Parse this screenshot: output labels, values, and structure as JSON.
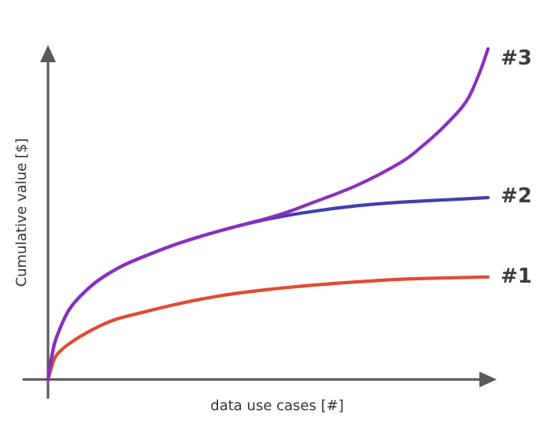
{
  "chart_data": {
    "type": "line",
    "title": "",
    "xlabel": "data use cases [#]",
    "ylabel": "Cumulative value [$]",
    "xlim": [
      0,
      100
    ],
    "ylim": [
      0,
      100
    ],
    "grid": false,
    "legend": "none",
    "axis_ticks": false,
    "series": [
      {
        "name": "#1",
        "color": "#e24a33",
        "x": [
          0,
          1,
          2,
          5,
          10,
          15,
          20,
          30,
          40,
          50,
          60,
          70,
          80,
          90,
          100
        ],
        "y": [
          0,
          4.5,
          7.5,
          11,
          15,
          18,
          19.8,
          23,
          25.5,
          27.2,
          28.5,
          29.5,
          30.3,
          30.7,
          31
        ]
      },
      {
        "name": "#2",
        "color": "#4040b0",
        "x": [
          0,
          1,
          2,
          5,
          10,
          15,
          20,
          30,
          40,
          50,
          60,
          70,
          80,
          90,
          100
        ],
        "y": [
          0,
          8,
          13,
          21.5,
          28.5,
          33,
          36.2,
          41.3,
          45.3,
          48.5,
          50.8,
          52.5,
          53.6,
          54.3,
          55
        ]
      },
      {
        "name": "#3",
        "color": "#8a2fc0",
        "x": [
          0,
          1,
          2,
          5,
          10,
          15,
          20,
          30,
          40,
          50,
          55,
          60,
          70,
          80,
          85,
          90,
          95,
          98,
          100
        ],
        "y": [
          0,
          8,
          13,
          21.5,
          28.5,
          33,
          36.2,
          41.3,
          45.3,
          48.8,
          50.9,
          53.4,
          58.6,
          65.5,
          70.5,
          76.5,
          84,
          92.5,
          100
        ]
      }
    ]
  }
}
